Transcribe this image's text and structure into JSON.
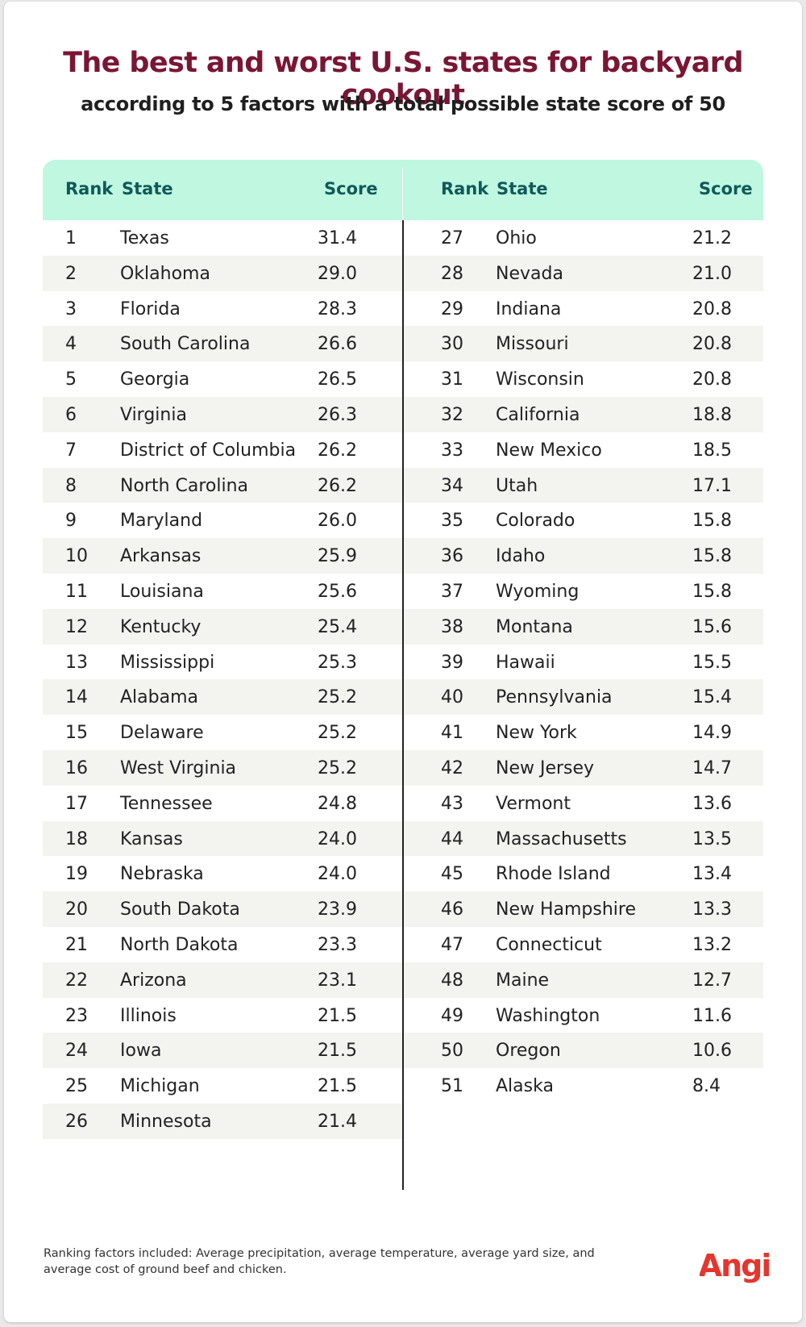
{
  "title": "The best and worst U.S. states for backyard cookout",
  "subtitle": "according to 5 factors with a total possible state score of 50",
  "headers": {
    "rank": "Rank",
    "state": "State",
    "score": "Score"
  },
  "footnote": "Ranking factors included: Average precipitation, average temperature, average yard size, and average cost of ground beef and chicken.",
  "brand": {
    "name": "Angi",
    "color": "#e4362d"
  },
  "colors": {
    "title": "#7a1634",
    "header_bg": "#bff7e0",
    "header_text": "#0f5a59",
    "row_shade": "#f3f3f0"
  },
  "chart_data": {
    "type": "table",
    "title": "The best and worst U.S. states for backyard cookout",
    "subtitle": "according to 5 factors with a total possible state score of 50",
    "columns": [
      "Rank",
      "State",
      "Score"
    ],
    "rows": [
      {
        "rank": "1",
        "state": "Texas",
        "score": "31.4"
      },
      {
        "rank": "2",
        "state": "Oklahoma",
        "score": "29.0"
      },
      {
        "rank": "3",
        "state": "Florida",
        "score": "28.3"
      },
      {
        "rank": "4",
        "state": "South Carolina",
        "score": "26.6"
      },
      {
        "rank": "5",
        "state": "Georgia",
        "score": "26.5"
      },
      {
        "rank": "6",
        "state": "Virginia",
        "score": "26.3"
      },
      {
        "rank": "7",
        "state": "District of Columbia",
        "score": "26.2"
      },
      {
        "rank": "8",
        "state": "North Carolina",
        "score": "26.2"
      },
      {
        "rank": "9",
        "state": "Maryland",
        "score": "26.0"
      },
      {
        "rank": "10",
        "state": "Arkansas",
        "score": "25.9"
      },
      {
        "rank": "11",
        "state": "Louisiana",
        "score": "25.6"
      },
      {
        "rank": "12",
        "state": "Kentucky",
        "score": "25.4"
      },
      {
        "rank": "13",
        "state": "Mississippi",
        "score": "25.3"
      },
      {
        "rank": "14",
        "state": "Alabama",
        "score": "25.2"
      },
      {
        "rank": "15",
        "state": "Delaware",
        "score": "25.2"
      },
      {
        "rank": "16",
        "state": "West Virginia",
        "score": "25.2"
      },
      {
        "rank": "17",
        "state": "Tennessee",
        "score": "24.8"
      },
      {
        "rank": "18",
        "state": "Kansas",
        "score": "24.0"
      },
      {
        "rank": "19",
        "state": "Nebraska",
        "score": "24.0"
      },
      {
        "rank": "20",
        "state": "South Dakota",
        "score": "23.9"
      },
      {
        "rank": "21",
        "state": "North Dakota",
        "score": "23.3"
      },
      {
        "rank": "22",
        "state": "Arizona",
        "score": "23.1"
      },
      {
        "rank": "23",
        "state": "Illinois",
        "score": "21.5"
      },
      {
        "rank": "24",
        "state": "Iowa",
        "score": "21.5"
      },
      {
        "rank": "25",
        "state": "Michigan",
        "score": "21.5"
      },
      {
        "rank": "26",
        "state": "Minnesota",
        "score": "21.4"
      },
      {
        "rank": "27",
        "state": "Ohio",
        "score": "21.2"
      },
      {
        "rank": "28",
        "state": "Nevada",
        "score": "21.0"
      },
      {
        "rank": "29",
        "state": "Indiana",
        "score": "20.8"
      },
      {
        "rank": "30",
        "state": "Missouri",
        "score": "20.8"
      },
      {
        "rank": "31",
        "state": "Wisconsin",
        "score": "20.8"
      },
      {
        "rank": "32",
        "state": "California",
        "score": "18.8"
      },
      {
        "rank": "33",
        "state": "New Mexico",
        "score": "18.5"
      },
      {
        "rank": "34",
        "state": "Utah",
        "score": "17.1"
      },
      {
        "rank": "35",
        "state": "Colorado",
        "score": "15.8"
      },
      {
        "rank": "36",
        "state": "Idaho",
        "score": "15.8"
      },
      {
        "rank": "37",
        "state": "Wyoming",
        "score": "15.8"
      },
      {
        "rank": "38",
        "state": "Montana",
        "score": "15.6"
      },
      {
        "rank": "39",
        "state": "Hawaii",
        "score": "15.5"
      },
      {
        "rank": "40",
        "state": "Pennsylvania",
        "score": "15.4"
      },
      {
        "rank": "41",
        "state": "New York",
        "score": "14.9"
      },
      {
        "rank": "42",
        "state": "New Jersey",
        "score": "14.7"
      },
      {
        "rank": "43",
        "state": "Vermont",
        "score": "13.6"
      },
      {
        "rank": "44",
        "state": "Massachusetts",
        "score": "13.5"
      },
      {
        "rank": "45",
        "state": "Rhode Island",
        "score": "13.4"
      },
      {
        "rank": "46",
        "state": "New Hampshire",
        "score": "13.3"
      },
      {
        "rank": "47",
        "state": "Connecticut",
        "score": "13.2"
      },
      {
        "rank": "48",
        "state": "Maine",
        "score": "12.7"
      },
      {
        "rank": "49",
        "state": "Washington",
        "score": "11.6"
      },
      {
        "rank": "50",
        "state": "Oregon",
        "score": "10.6"
      },
      {
        "rank": "51",
        "state": "Alaska",
        "score": "8.4"
      }
    ]
  }
}
